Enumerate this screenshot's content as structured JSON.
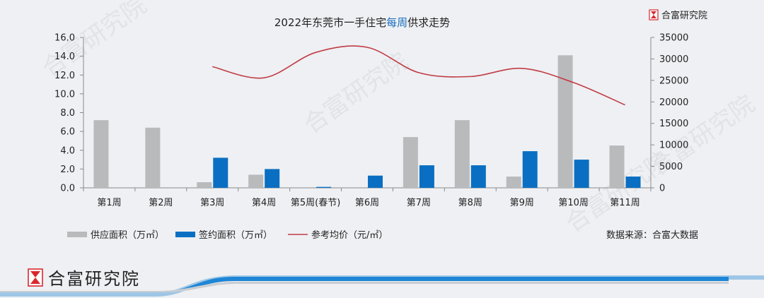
{
  "brand": {
    "name": "合富研究院",
    "color_red": "#d8292f"
  },
  "footer": {
    "brand_name": "合富研究院"
  },
  "source_note": "数据来源：合富大数据",
  "watermark_text": "合富研究院",
  "chart_data": {
    "type": "bar",
    "title_parts": [
      "2022年东莞市一手住宅",
      "每周",
      "供求走势"
    ],
    "title_highlight_color": "#1a6fbf",
    "categories": [
      "第1周",
      "第2周",
      "第3周",
      "第4周",
      "第5周(春节)",
      "第6周",
      "第7周",
      "第8周",
      "第9周",
      "第10周",
      "第11周"
    ],
    "y_left": {
      "min": 0,
      "max": 16,
      "step": 2,
      "tick_labels": [
        "0.0",
        "2.0",
        "4.0",
        "6.0",
        "8.0",
        "10.0",
        "12.0",
        "14.0",
        "16.0"
      ]
    },
    "y_right": {
      "min": 0,
      "max": 35000,
      "step": 5000,
      "tick_labels": [
        "0",
        "5000",
        "10000",
        "15000",
        "20000",
        "25000",
        "30000",
        "35000"
      ]
    },
    "series": [
      {
        "name": "供应面积（万㎡）",
        "kind": "bar",
        "axis": "left",
        "color": "#b9babc",
        "values": [
          7.2,
          6.4,
          0.6,
          1.4,
          0,
          0,
          5.4,
          7.2,
          1.2,
          14.1,
          4.5
        ]
      },
      {
        "name": "签约面积（万㎡）",
        "kind": "bar",
        "axis": "left",
        "color": "#0a6fc2",
        "values": [
          0,
          0,
          3.2,
          2.0,
          0.1,
          1.3,
          2.4,
          2.4,
          3.9,
          3.0,
          1.2
        ]
      },
      {
        "name": "参考均价（元/㎡）",
        "kind": "line",
        "axis": "right",
        "color": "#c23b45",
        "values": [
          null,
          null,
          28200,
          25600,
          31500,
          32700,
          26800,
          25900,
          27800,
          24500,
          19300
        ]
      }
    ],
    "legend": {
      "position": "bottom-left",
      "labels": [
        "供应面积（万㎡）",
        "签约面积（万㎡）",
        "参考均价（元/㎡）"
      ]
    },
    "grid": false
  }
}
